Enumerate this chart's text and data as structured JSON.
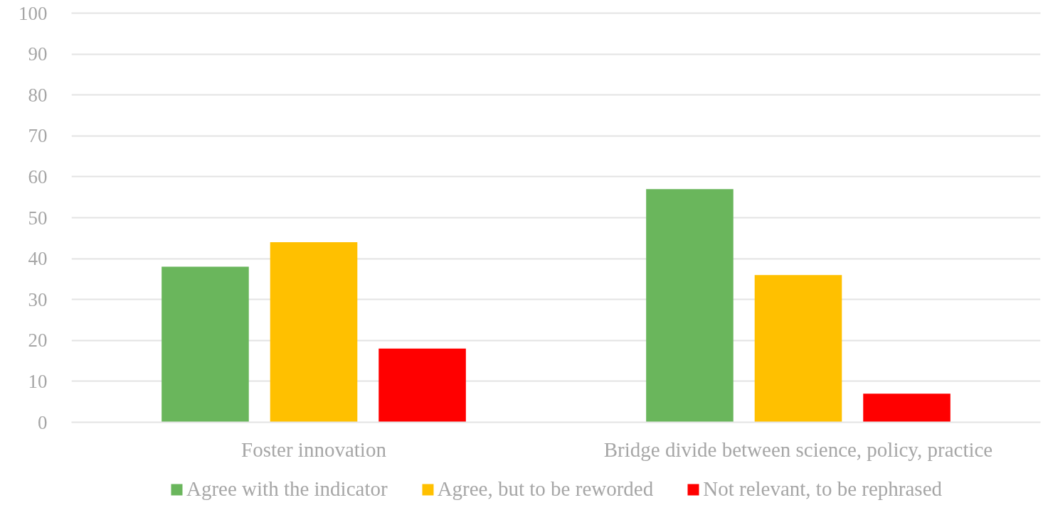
{
  "chart_data": {
    "type": "bar",
    "categories": [
      "Foster innovation",
      "Bridge divide between science, policy, practice"
    ],
    "series": [
      {
        "name": "Agree with the indicator",
        "color": "#6ab65c",
        "values": [
          38,
          57
        ]
      },
      {
        "name": "Agree, but to be reworded",
        "color": "#ffc000",
        "values": [
          44,
          36
        ]
      },
      {
        "name": "Not relevant, to be rephrased",
        "color": "#ff0000",
        "values": [
          18,
          7
        ]
      }
    ],
    "ylim": [
      0,
      100
    ],
    "yticks": [
      0,
      10,
      20,
      30,
      40,
      50,
      60,
      70,
      80,
      90,
      100
    ],
    "grid": "y",
    "legend": "bottom"
  }
}
